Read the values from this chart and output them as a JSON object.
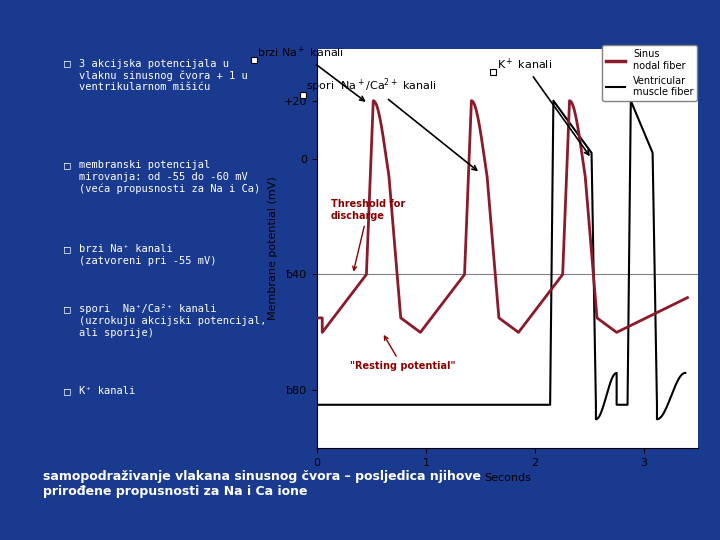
{
  "bg_color": "#1a3a8f",
  "panel_bg": "#ffffff",
  "title_bottom": "samopodraživanje vlakana sinusnog čvora – posljedica njihove\nprirođene propusnosti za Na i Ca ione",
  "ylabel": "Membrane potential (mV)",
  "xlabel": "Seconds",
  "yticks": [
    20,
    0,
    -40,
    -80
  ],
  "ytick_labels": [
    "+20",
    "0",
    "ƀ40",
    "ƀ80"
  ],
  "xlim": [
    0,
    3.5
  ],
  "ylim": [
    -100,
    38
  ],
  "threshold_y": -40,
  "sinus_color": "#8b1a2a",
  "ventricular_color": "#000000",
  "legend_sinus": "Sinus\nnodal fiber",
  "legend_ventricular": "Ventricular\nmuscle fiber",
  "threshold_label": "Threshold for\ndischarge",
  "resting_label": "\"Resting potential\"",
  "annotation_color": "#8b0000"
}
